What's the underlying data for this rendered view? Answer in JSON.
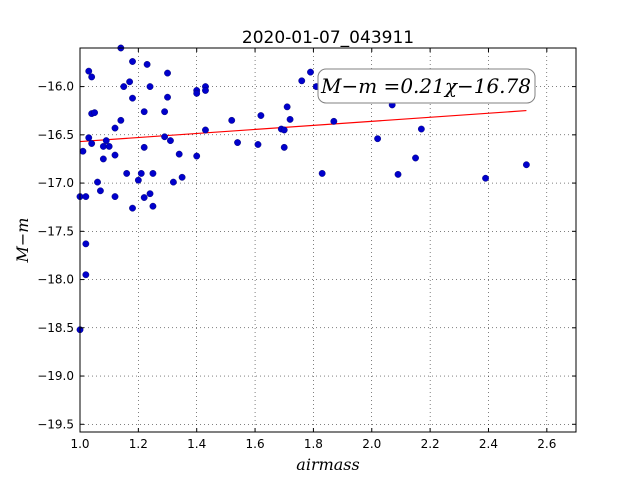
{
  "chart_data": {
    "type": "scatter",
    "title": "2020-01-07_043911",
    "xlabel": "airmass",
    "ylabel": "M−m",
    "xlim": [
      1.0,
      2.7
    ],
    "ylim": [
      -19.58,
      -15.6
    ],
    "y_inverted": true,
    "xticks": [
      "1.0",
      "1.2",
      "1.4",
      "1.6",
      "1.8",
      "2.0",
      "2.2",
      "2.4",
      "2.6"
    ],
    "yticks": [
      "−16.0",
      "−16.5",
      "−17.0",
      "−17.5",
      "−18.0",
      "−18.5",
      "−19.0",
      "−19.5"
    ],
    "grid": true,
    "annotation": "M−m =0.21χ−16.78",
    "fit": {
      "slope": 0.21,
      "intercept": -16.78,
      "x_range": [
        1.0,
        2.53
      ],
      "color": "#ff0000"
    },
    "point_color": "#0000cc",
    "points": [
      [
        1.0,
        -17.14
      ],
      [
        1.0,
        -18.52
      ],
      [
        1.01,
        -16.67
      ],
      [
        1.02,
        -17.14
      ],
      [
        1.02,
        -17.63
      ],
      [
        1.02,
        -17.95
      ],
      [
        1.03,
        -15.84
      ],
      [
        1.03,
        -16.53
      ],
      [
        1.04,
        -15.9
      ],
      [
        1.04,
        -16.59
      ],
      [
        1.04,
        -16.28
      ],
      [
        1.05,
        -16.27
      ],
      [
        1.06,
        -16.99
      ],
      [
        1.07,
        -17.08
      ],
      [
        1.08,
        -16.62
      ],
      [
        1.08,
        -16.75
      ],
      [
        1.09,
        -16.56
      ],
      [
        1.1,
        -16.62
      ],
      [
        1.12,
        -17.14
      ],
      [
        1.12,
        -16.43
      ],
      [
        1.12,
        -16.71
      ],
      [
        1.14,
        -15.6
      ],
      [
        1.14,
        -16.35
      ],
      [
        1.15,
        -16.0
      ],
      [
        1.16,
        -16.9
      ],
      [
        1.17,
        -15.95
      ],
      [
        1.18,
        -15.74
      ],
      [
        1.18,
        -16.12
      ],
      [
        1.18,
        -17.26
      ],
      [
        1.2,
        -16.97
      ],
      [
        1.21,
        -16.9
      ],
      [
        1.22,
        -16.26
      ],
      [
        1.22,
        -16.63
      ],
      [
        1.22,
        -17.15
      ],
      [
        1.23,
        -15.77
      ],
      [
        1.24,
        -16.0
      ],
      [
        1.24,
        -17.11
      ],
      [
        1.25,
        -16.9
      ],
      [
        1.25,
        -17.24
      ],
      [
        1.29,
        -16.26
      ],
      [
        1.29,
        -16.52
      ],
      [
        1.3,
        -15.86
      ],
      [
        1.3,
        -16.11
      ],
      [
        1.31,
        -16.56
      ],
      [
        1.32,
        -16.99
      ],
      [
        1.34,
        -16.7
      ],
      [
        1.35,
        -16.94
      ],
      [
        1.4,
        -16.04
      ],
      [
        1.4,
        -16.07
      ],
      [
        1.4,
        -16.72
      ],
      [
        1.43,
        -16.0
      ],
      [
        1.43,
        -16.04
      ],
      [
        1.43,
        -16.45
      ],
      [
        1.52,
        -16.35
      ],
      [
        1.54,
        -16.58
      ],
      [
        1.61,
        -16.6
      ],
      [
        1.62,
        -16.3
      ],
      [
        1.69,
        -16.44
      ],
      [
        1.7,
        -16.45
      ],
      [
        1.7,
        -16.63
      ],
      [
        1.71,
        -16.21
      ],
      [
        1.72,
        -16.34
      ],
      [
        1.76,
        -15.94
      ],
      [
        1.79,
        -15.85
      ],
      [
        1.81,
        -16.0
      ],
      [
        1.83,
        -16.9
      ],
      [
        1.87,
        -16.36
      ],
      [
        2.02,
        -16.54
      ],
      [
        2.07,
        -16.19
      ],
      [
        2.09,
        -16.91
      ],
      [
        2.15,
        -16.74
      ],
      [
        2.17,
        -16.44
      ],
      [
        2.39,
        -16.95
      ],
      [
        2.53,
        -16.81
      ]
    ]
  }
}
